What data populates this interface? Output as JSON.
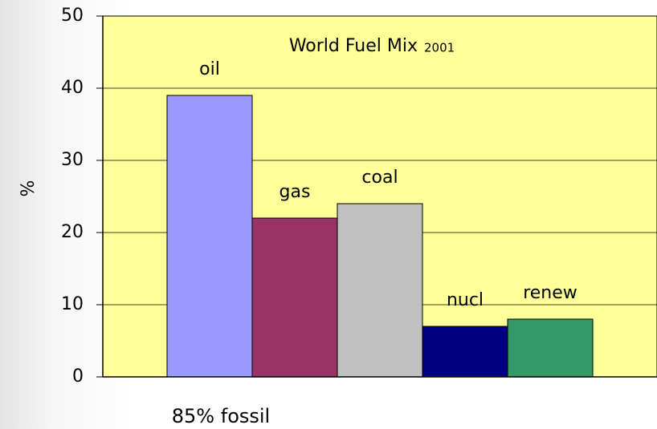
{
  "chart_data": {
    "type": "bar",
    "title": "World Fuel Mix",
    "subtitle": "2001",
    "ylabel": "%",
    "annotation": "85% fossil",
    "categories": [
      "oil",
      "gas",
      "coal",
      "nucl",
      "renew"
    ],
    "values": [
      39,
      22,
      24,
      7,
      8
    ],
    "colors": [
      "#9999ff",
      "#993366",
      "#c0c0c0",
      "#000080",
      "#339966"
    ],
    "ylim": [
      0,
      50
    ],
    "yticks": [
      0,
      10,
      20,
      30,
      40,
      50
    ],
    "grid": true
  }
}
